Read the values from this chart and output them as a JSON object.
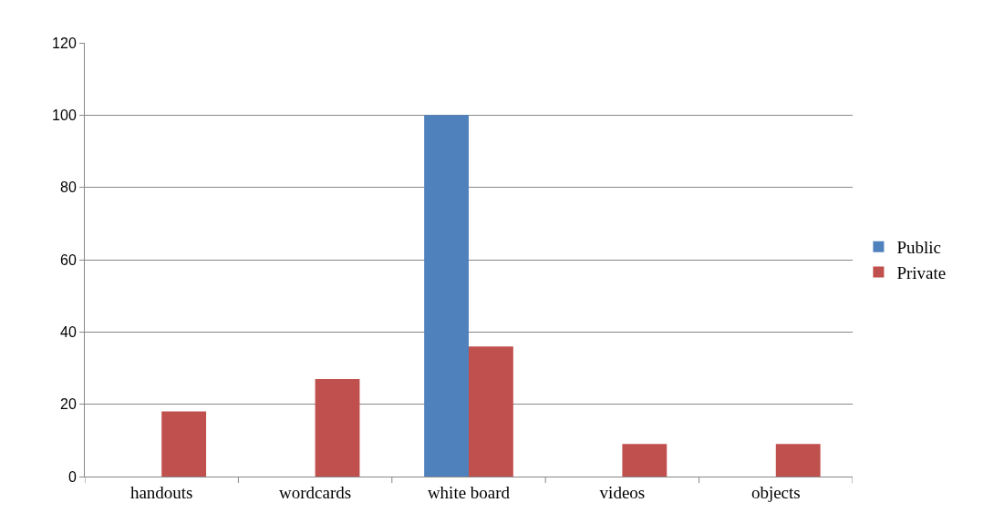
{
  "chart_data": {
    "type": "bar",
    "categories": [
      "handouts",
      "wordcards",
      "white board",
      "videos",
      "objects"
    ],
    "series": [
      {
        "name": "Public",
        "color": "#4f81bd",
        "values": [
          0,
          0,
          100,
          0,
          0
        ]
      },
      {
        "name": "Private",
        "color": "#c0504d",
        "values": [
          18,
          27,
          36,
          9,
          9
        ]
      }
    ],
    "ylim": [
      0,
      120
    ],
    "yticks": [
      0,
      20,
      40,
      60,
      80,
      100,
      120
    ],
    "grid": "y",
    "legend": "right"
  }
}
